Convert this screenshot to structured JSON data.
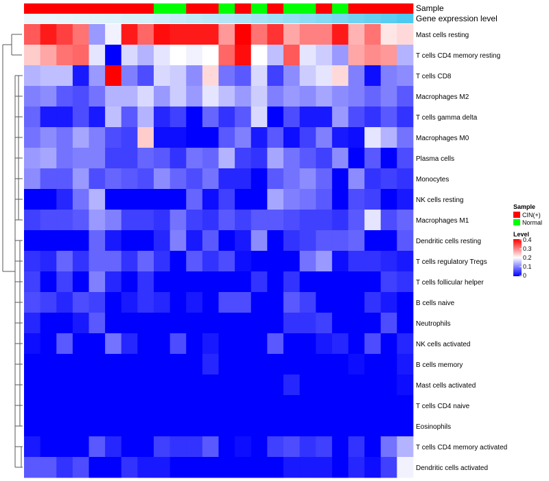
{
  "chart_data": {
    "type": "heatmap",
    "annotation_titles": [
      "Sample",
      "Gene expression level"
    ],
    "legend": {
      "sample_title": "Sample",
      "sample_entries": [
        {
          "label": "CIN(+)",
          "color": "#ff0000"
        },
        {
          "label": "Normal",
          "color": "#00ff00"
        }
      ],
      "level_title": "Level",
      "level_ticks": [
        "0.4",
        "0.3",
        "0.2",
        "0.1",
        "0"
      ],
      "level_range": [
        0,
        0.4
      ]
    },
    "colors": {
      "low": "#0000ff",
      "mid": "#ffffff",
      "high": "#ff0000",
      "normal": "#00ff00",
      "cin": "#ff0000",
      "gene_low": "#edf7fb",
      "gene_high": "#4ec9ef",
      "tree": "#555555"
    },
    "sample_groups": [
      "CIN",
      "CIN",
      "CIN",
      "CIN",
      "CIN",
      "CIN",
      "CIN",
      "CIN",
      "Normal",
      "Normal",
      "CIN",
      "CIN",
      "Normal",
      "CIN",
      "Normal",
      "CIN",
      "Normal",
      "Normal",
      "CIN",
      "Normal",
      "CIN",
      "CIN",
      "CIN",
      "CIN"
    ],
    "gene_expression": [
      0.0,
      0.02,
      0.04,
      0.06,
      0.08,
      0.1,
      0.13,
      0.16,
      0.2,
      0.24,
      0.28,
      0.32,
      0.36,
      0.4,
      0.45,
      0.5,
      0.55,
      0.6,
      0.66,
      0.72,
      0.78,
      0.85,
      0.92,
      1.0
    ],
    "rows": [
      "Mast cells resting",
      "T cells CD4 memory resting",
      "T cells CD8",
      "Macrophages M2",
      "T cells gamma delta",
      "Macrophages M0",
      "Plasma cells",
      "Monocytes",
      "NK cells resting",
      "Macrophages M1",
      "Dendritic cells resting",
      "T cells regulatory  Tregs",
      "T cells follicular helper",
      "B cells naive",
      "Neutrophils",
      "NK cells activated",
      "B cells memory",
      "Mast cells activated",
      "T cells CD4 naive",
      "Eosinophils",
      "T cells CD4 memory activated",
      "Dendritic cells activated"
    ],
    "values": [
      [
        0.33,
        0.38,
        0.35,
        0.31,
        0.12,
        0.19,
        0.38,
        0.32,
        0.39,
        0.38,
        0.38,
        0.38,
        0.28,
        0.4,
        0.31,
        0.36,
        0.27,
        0.3,
        0.3,
        0.38,
        0.26,
        0.31,
        0.22,
        0.23
      ],
      [
        0.24,
        0.27,
        0.31,
        0.32,
        0.18,
        0.0,
        0.17,
        0.14,
        0.18,
        0.2,
        0.19,
        0.2,
        0.32,
        0.39,
        0.2,
        0.15,
        0.33,
        0.18,
        0.16,
        0.12,
        0.27,
        0.29,
        0.28,
        0.14
      ],
      [
        0.14,
        0.15,
        0.15,
        0.02,
        0.12,
        0.4,
        0.1,
        0.06,
        0.17,
        0.16,
        0.11,
        0.23,
        0.09,
        0.07,
        0.17,
        0.05,
        0.11,
        0.16,
        0.18,
        0.23,
        0.1,
        0.01,
        0.1,
        0.11
      ],
      [
        0.1,
        0.11,
        0.07,
        0.06,
        0.09,
        0.14,
        0.14,
        0.17,
        0.12,
        0.16,
        0.12,
        0.18,
        0.15,
        0.12,
        0.16,
        0.1,
        0.12,
        0.11,
        0.13,
        0.11,
        0.1,
        0.08,
        0.1,
        0.07
      ],
      [
        0.08,
        0.02,
        0.02,
        0.06,
        0.02,
        0.15,
        0.07,
        0.14,
        0.03,
        0.05,
        0.0,
        0.08,
        0.04,
        0.07,
        0.17,
        0.0,
        0.06,
        0.02,
        0.02,
        0.12,
        0.06,
        0.04,
        0.07,
        0.04
      ],
      [
        0.09,
        0.11,
        0.09,
        0.13,
        0.1,
        0.06,
        0.05,
        0.24,
        0.01,
        0.01,
        0.0,
        0.0,
        0.07,
        0.1,
        0.02,
        0.07,
        0.01,
        0.05,
        0.1,
        0.02,
        0.01,
        0.18,
        0.14,
        0.09
      ],
      [
        0.12,
        0.13,
        0.09,
        0.1,
        0.1,
        0.05,
        0.05,
        0.08,
        0.07,
        0.04,
        0.09,
        0.08,
        0.14,
        0.05,
        0.04,
        0.13,
        0.09,
        0.07,
        0.05,
        0.11,
        0.0,
        0.07,
        0.0,
        0.06
      ],
      [
        0.11,
        0.07,
        0.07,
        0.12,
        0.06,
        0.08,
        0.07,
        0.06,
        0.11,
        0.08,
        0.06,
        0.09,
        0.03,
        0.03,
        0.0,
        0.07,
        0.09,
        0.11,
        0.08,
        0.0,
        0.11,
        0.04,
        0.05,
        0.04
      ],
      [
        0.0,
        0.0,
        0.03,
        0.09,
        0.14,
        0.0,
        0.0,
        0.0,
        0.0,
        0.0,
        0.08,
        0.01,
        0.05,
        0.0,
        0.0,
        0.13,
        0.1,
        0.09,
        0.07,
        0.0,
        0.06,
        0.05,
        0.0,
        0.02
      ],
      [
        0.05,
        0.06,
        0.06,
        0.07,
        0.12,
        0.1,
        0.05,
        0.05,
        0.04,
        0.09,
        0.05,
        0.04,
        0.07,
        0.05,
        0.07,
        0.07,
        0.06,
        0.05,
        0.05,
        0.04,
        0.07,
        0.18,
        0.06,
        0.08
      ],
      [
        0.0,
        0.0,
        0.0,
        0.0,
        0.08,
        0.02,
        0.0,
        0.0,
        0.03,
        0.1,
        0.02,
        0.07,
        0.0,
        0.02,
        0.11,
        0.0,
        0.04,
        0.05,
        0.07,
        0.07,
        0.08,
        0.0,
        0.0,
        0.07
      ],
      [
        0.04,
        0.03,
        0.08,
        0.04,
        0.08,
        0.08,
        0.04,
        0.08,
        0.04,
        0.0,
        0.07,
        0.04,
        0.06,
        0.01,
        0.0,
        0.0,
        0.0,
        0.09,
        0.12,
        0.01,
        0.04,
        0.04,
        0.03,
        0.02
      ],
      [
        0.05,
        0.0,
        0.05,
        0.0,
        0.1,
        0.03,
        0.0,
        0.04,
        0.0,
        0.0,
        0.0,
        0.0,
        0.0,
        0.0,
        0.04,
        0.0,
        0.04,
        0.0,
        0.0,
        0.0,
        0.0,
        0.0,
        0.05,
        0.04
      ],
      [
        0.06,
        0.05,
        0.03,
        0.06,
        0.05,
        0.0,
        0.02,
        0.04,
        0.03,
        0.0,
        0.02,
        0.0,
        0.06,
        0.06,
        0.0,
        0.0,
        0.07,
        0.05,
        0.0,
        0.0,
        0.0,
        0.04,
        0.02,
        0.0
      ],
      [
        0.03,
        0.0,
        0.0,
        0.02,
        0.07,
        0.0,
        0.0,
        0.0,
        0.0,
        0.0,
        0.0,
        0.0,
        0.0,
        0.0,
        0.0,
        0.0,
        0.04,
        0.04,
        0.05,
        0.0,
        0.0,
        0.0,
        0.06,
        0.0
      ],
      [
        0.01,
        0.0,
        0.07,
        0.0,
        0.0,
        0.09,
        0.03,
        0.0,
        0.0,
        0.06,
        0.0,
        0.02,
        0.0,
        0.0,
        0.0,
        0.07,
        0.0,
        0.0,
        0.02,
        0.03,
        0.0,
        0.06,
        0.0,
        0.03
      ],
      [
        0.0,
        0.0,
        0.0,
        0.0,
        0.0,
        0.0,
        0.0,
        0.0,
        0.0,
        0.0,
        0.0,
        0.03,
        0.0,
        0.0,
        0.0,
        0.0,
        0.0,
        0.0,
        0.0,
        0.0,
        0.01,
        0.0,
        0.0,
        0.02
      ],
      [
        0.0,
        0.0,
        0.0,
        0.0,
        0.0,
        0.0,
        0.0,
        0.0,
        0.0,
        0.0,
        0.0,
        0.0,
        0.0,
        0.0,
        0.0,
        0.0,
        0.03,
        0.0,
        0.0,
        0.0,
        0.0,
        0.0,
        0.0,
        0.01
      ],
      [
        0.0,
        0.0,
        0.0,
        0.0,
        0.0,
        0.0,
        0.0,
        0.0,
        0.0,
        0.0,
        0.0,
        0.0,
        0.0,
        0.0,
        0.0,
        0.0,
        0.0,
        0.0,
        0.0,
        0.0,
        0.0,
        0.0,
        0.0,
        0.0
      ],
      [
        0.0,
        0.0,
        0.0,
        0.0,
        0.0,
        0.0,
        0.0,
        0.0,
        0.0,
        0.0,
        0.0,
        0.0,
        0.0,
        0.0,
        0.0,
        0.0,
        0.0,
        0.0,
        0.0,
        0.0,
        0.0,
        0.0,
        0.0,
        0.0
      ],
      [
        0.02,
        0.0,
        0.0,
        0.0,
        0.07,
        0.03,
        0.0,
        0.0,
        0.05,
        0.04,
        0.04,
        0.07,
        0.0,
        0.01,
        0.0,
        0.05,
        0.06,
        0.04,
        0.05,
        0.0,
        0.04,
        0.0,
        0.09,
        0.14
      ],
      [
        0.07,
        0.07,
        0.04,
        0.06,
        0.0,
        0.0,
        0.04,
        0.02,
        0.02,
        0.0,
        0.0,
        0.0,
        0.0,
        0.0,
        0.0,
        0.0,
        0.02,
        0.02,
        0.02,
        0.0,
        0.03,
        0.01,
        0.05,
        0.19
      ]
    ]
  }
}
